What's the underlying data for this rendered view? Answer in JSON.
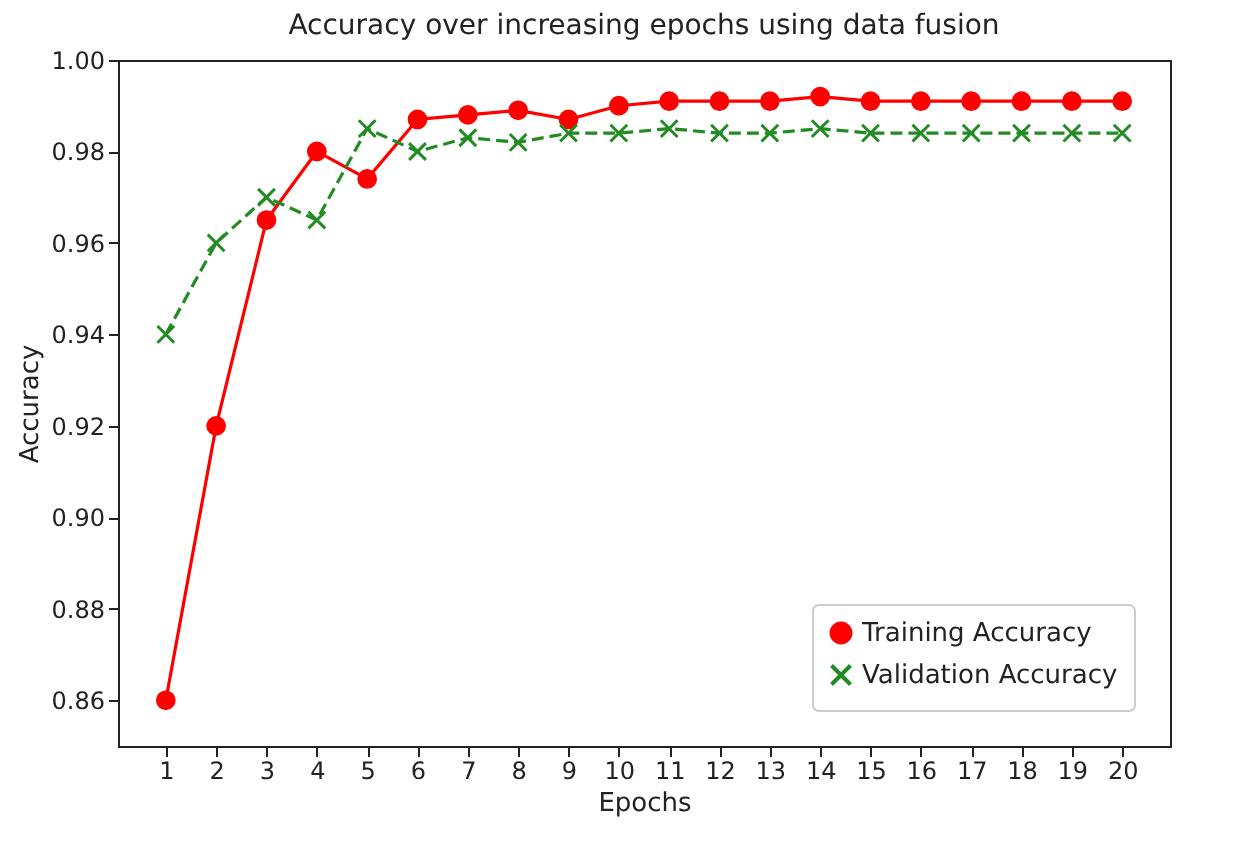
{
  "chart_data": {
    "type": "line",
    "title": "Accuracy over increasing epochs using data fusion",
    "xlabel": "Epochs",
    "ylabel": "Accuracy",
    "x": [
      1,
      2,
      3,
      4,
      5,
      6,
      7,
      8,
      9,
      10,
      11,
      12,
      13,
      14,
      15,
      16,
      17,
      18,
      19,
      20
    ],
    "xlim": [
      0.05,
      20.95
    ],
    "xticks": [
      1,
      2,
      3,
      4,
      5,
      6,
      7,
      8,
      9,
      10,
      11,
      12,
      13,
      14,
      15,
      16,
      17,
      18,
      19,
      20
    ],
    "ylim": [
      0.85,
      1.0
    ],
    "yticks": [
      0.86,
      0.88,
      {
        "value": 0.9,
        "label": "0.90"
      },
      0.92,
      0.94,
      0.96,
      0.98,
      {
        "value": 1.0,
        "label": "1.00"
      }
    ],
    "grid": false,
    "legend": "bottom right",
    "series": [
      {
        "name": "Training Accuracy",
        "color": "#ff0000",
        "marker": "circle",
        "line_style": "solid",
        "values": [
          0.86,
          0.92,
          0.965,
          0.98,
          0.974,
          0.987,
          0.988,
          0.989,
          0.987,
          0.99,
          0.991,
          0.991,
          0.991,
          0.992,
          0.991,
          0.991,
          0.991,
          0.991,
          0.991,
          0.991
        ]
      },
      {
        "name": "Validation Accuracy",
        "color": "#228b22",
        "marker": "cross",
        "line_style": "dashed",
        "values": [
          0.94,
          0.96,
          0.97,
          0.965,
          0.985,
          0.98,
          0.983,
          0.982,
          0.984,
          0.984,
          0.985,
          0.984,
          0.984,
          0.985,
          0.984,
          0.984,
          0.984,
          0.984,
          0.984,
          0.984
        ]
      }
    ]
  }
}
